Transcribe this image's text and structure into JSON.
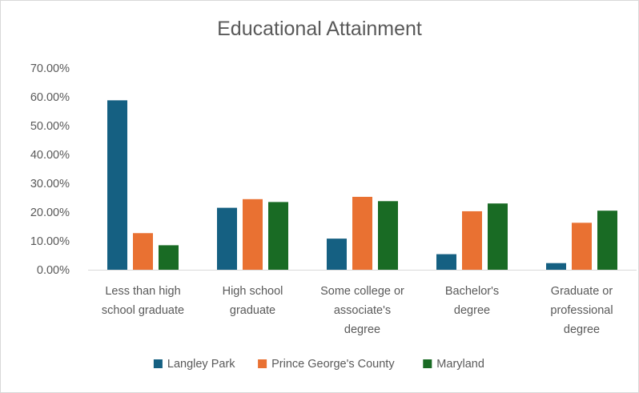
{
  "chart_data": {
    "type": "bar",
    "title": "Educational Attainment",
    "xlabel": "",
    "ylabel": "",
    "ylim": [
      0,
      0.7
    ],
    "y_ticks": [
      "0.00%",
      "10.00%",
      "20.00%",
      "30.00%",
      "40.00%",
      "50.00%",
      "60.00%",
      "70.00%"
    ],
    "categories": [
      [
        "Less than high",
        "school graduate"
      ],
      [
        "High school",
        "graduate"
      ],
      [
        "Some college or",
        "associate's",
        "degree"
      ],
      [
        "Bachelor's",
        "degree"
      ],
      [
        "Graduate or",
        "professional",
        "degree"
      ]
    ],
    "series": [
      {
        "name": "Langley Park",
        "color": "#156082",
        "values": [
          0.588,
          0.215,
          0.108,
          0.054,
          0.023
        ]
      },
      {
        "name": "Prince George's County",
        "color": "#e97132",
        "values": [
          0.127,
          0.245,
          0.253,
          0.203,
          0.163
        ]
      },
      {
        "name": "Maryland",
        "color": "#196b24",
        "values": [
          0.085,
          0.235,
          0.238,
          0.23,
          0.205
        ]
      }
    ],
    "grid": false,
    "legend_position": "bottom"
  }
}
